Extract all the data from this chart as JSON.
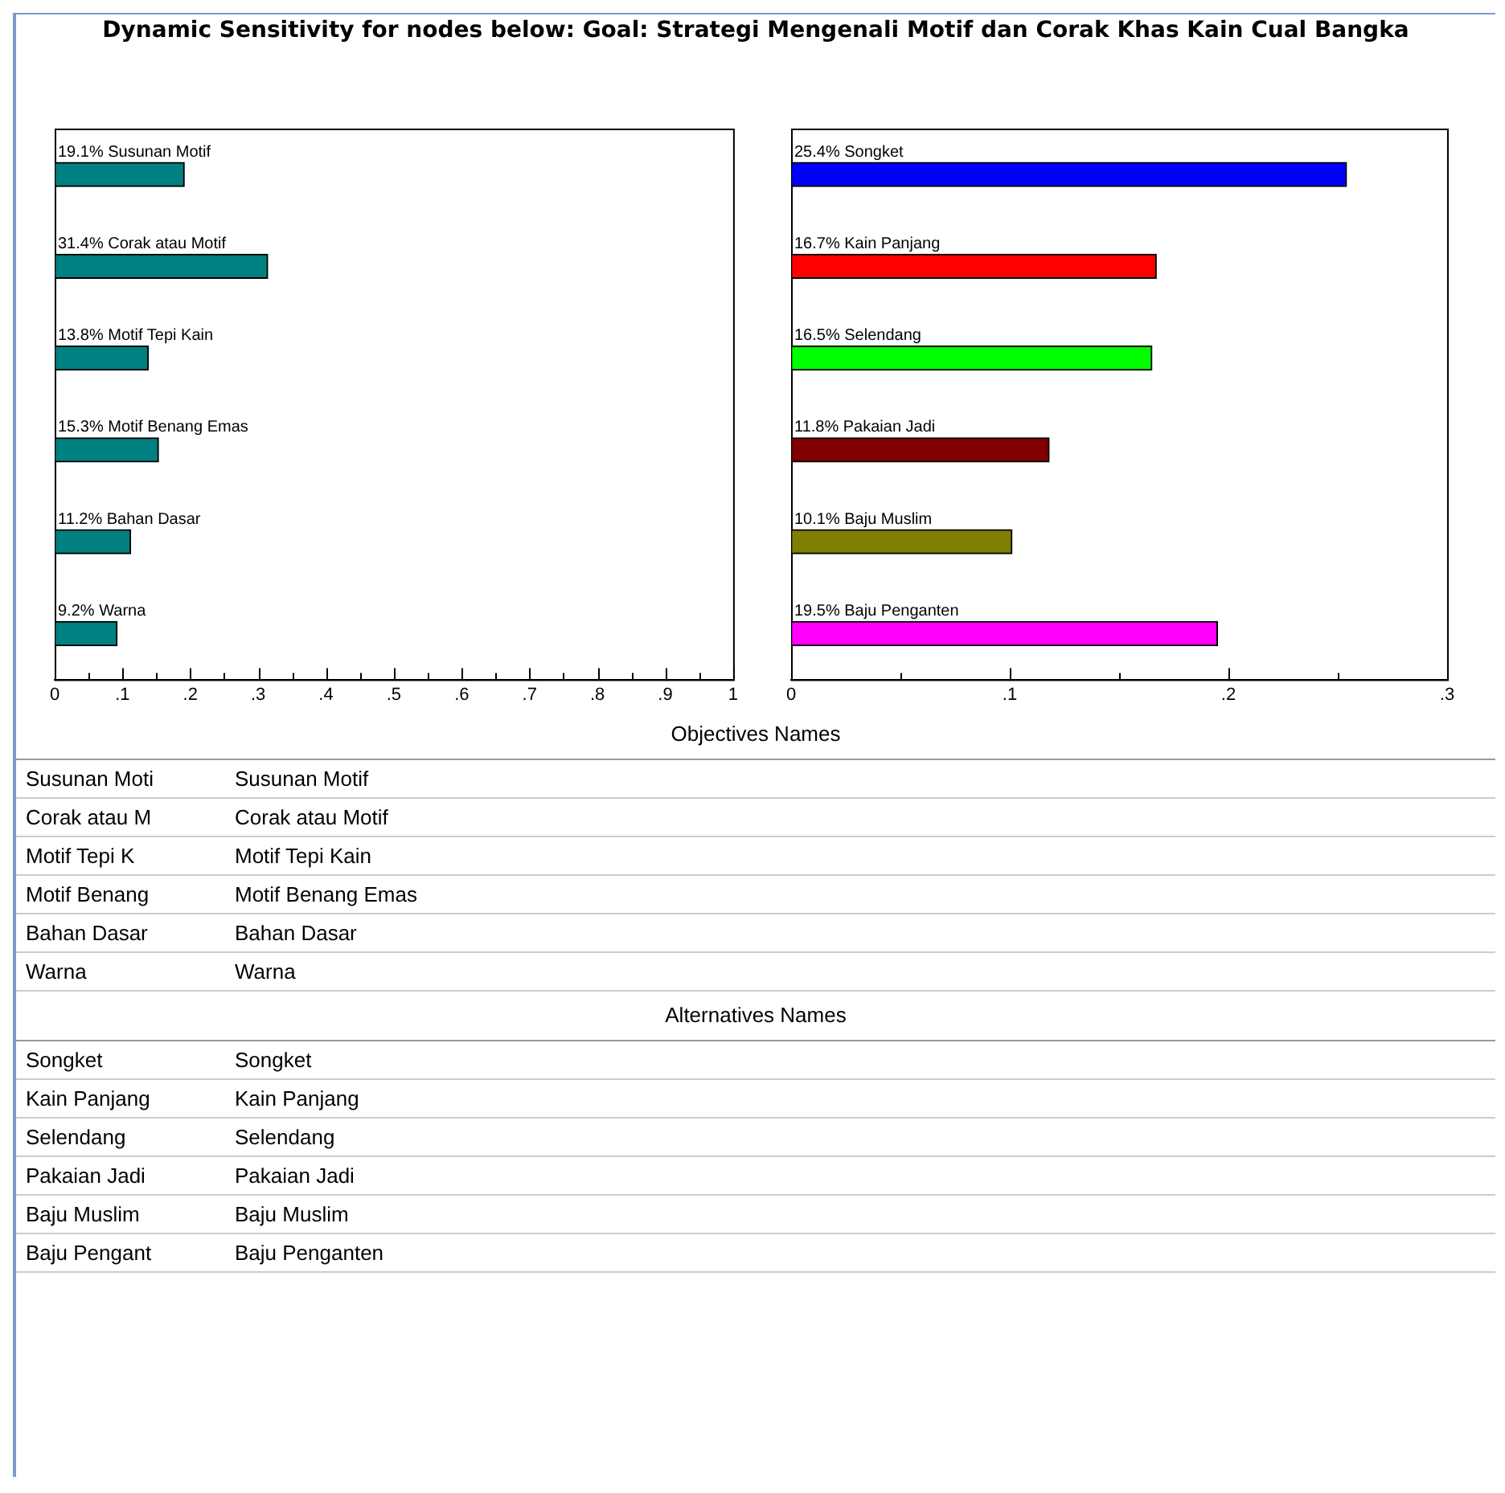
{
  "chart_data": [
    {
      "type": "bar",
      "orientation": "horizontal",
      "title": "Dynamic Sensitivity for nodes below: Goal: Strategi Mengenali Motif dan Corak Khas Kain Cual Bangka",
      "categories": [
        "Susunan Motif",
        "Corak atau Motif",
        "Motif Tepi Kain",
        "Motif Benang Emas",
        "Bahan Dasar",
        "Warna"
      ],
      "values": [
        0.191,
        0.314,
        0.138,
        0.153,
        0.112,
        0.092
      ],
      "value_labels": [
        "19.1%",
        "31.4%",
        "13.8%",
        "15.3%",
        "11.2%",
        "9.2%"
      ],
      "color": "#008080",
      "xlim": [
        0,
        1
      ],
      "xticks": [
        {
          "value": 0,
          "label": "0"
        },
        {
          "value": 0.05,
          "label": null
        },
        {
          "value": 0.1,
          "label": ".1"
        },
        {
          "value": 0.15,
          "label": null
        },
        {
          "value": 0.2,
          "label": ".2"
        },
        {
          "value": 0.25,
          "label": null
        },
        {
          "value": 0.3,
          "label": ".3"
        },
        {
          "value": 0.35,
          "label": null
        },
        {
          "value": 0.4,
          "label": ".4"
        },
        {
          "value": 0.45,
          "label": null
        },
        {
          "value": 0.5,
          "label": ".5"
        },
        {
          "value": 0.55,
          "label": null
        },
        {
          "value": 0.6,
          "label": ".6"
        },
        {
          "value": 0.65,
          "label": null
        },
        {
          "value": 0.7,
          "label": ".7"
        },
        {
          "value": 0.75,
          "label": null
        },
        {
          "value": 0.8,
          "label": ".8"
        },
        {
          "value": 0.85,
          "label": null
        },
        {
          "value": 0.9,
          "label": ".9"
        },
        {
          "value": 0.95,
          "label": null
        },
        {
          "value": 1,
          "label": "1"
        }
      ],
      "tick_labels": "x",
      "grid": false,
      "legend": false
    },
    {
      "type": "bar",
      "orientation": "horizontal",
      "categories": [
        "Songket",
        "Kain Panjang",
        "Selendang",
        "Pakaian Jadi",
        "Baju Muslim",
        "Baju Penganten"
      ],
      "values": [
        0.254,
        0.167,
        0.165,
        0.118,
        0.101,
        0.195
      ],
      "value_labels": [
        "25.4%",
        "16.7%",
        "16.5%",
        "11.8%",
        "10.1%",
        "19.5%"
      ],
      "colors": [
        "#0000ff",
        "#ff0000",
        "#00ff00",
        "#800000",
        "#808000",
        "#ff00ff"
      ],
      "xlim": [
        0,
        0.3
      ],
      "xticks": [
        {
          "value": 0,
          "label": "0"
        },
        {
          "value": 0.05,
          "label": null
        },
        {
          "value": 0.1,
          "label": ".1"
        },
        {
          "value": 0.15,
          "label": null
        },
        {
          "value": 0.2,
          "label": ".2"
        },
        {
          "value": 0.25,
          "label": null
        },
        {
          "value": 0.3,
          "label": ".3"
        }
      ],
      "tick_labels": "x",
      "grid": false,
      "legend": false
    },
    {
      "type": "other",
      "title": "Objectives Names",
      "annotations": [
        "Susunan Moti",
        "Susunan Motif",
        "Corak atau M",
        "Corak atau Motif",
        "Motif Tepi K",
        "Motif Tepi Kain",
        "Motif Benang",
        "Motif Benang Emas",
        "Bahan Dasar",
        "Bahan Dasar",
        "Warna",
        "Warna"
      ]
    },
    {
      "type": "other",
      "title": "Alternatives Names",
      "annotations": [
        "Songket",
        "Songket",
        "Kain Panjang",
        "Kain Panjang",
        "Selendang",
        "Selendang",
        "Pakaian Jadi",
        "Pakaian Jadi",
        "Baju Muslim",
        "Baju Muslim",
        "Baju Pengant",
        "Baju Penganten"
      ]
    }
  ]
}
